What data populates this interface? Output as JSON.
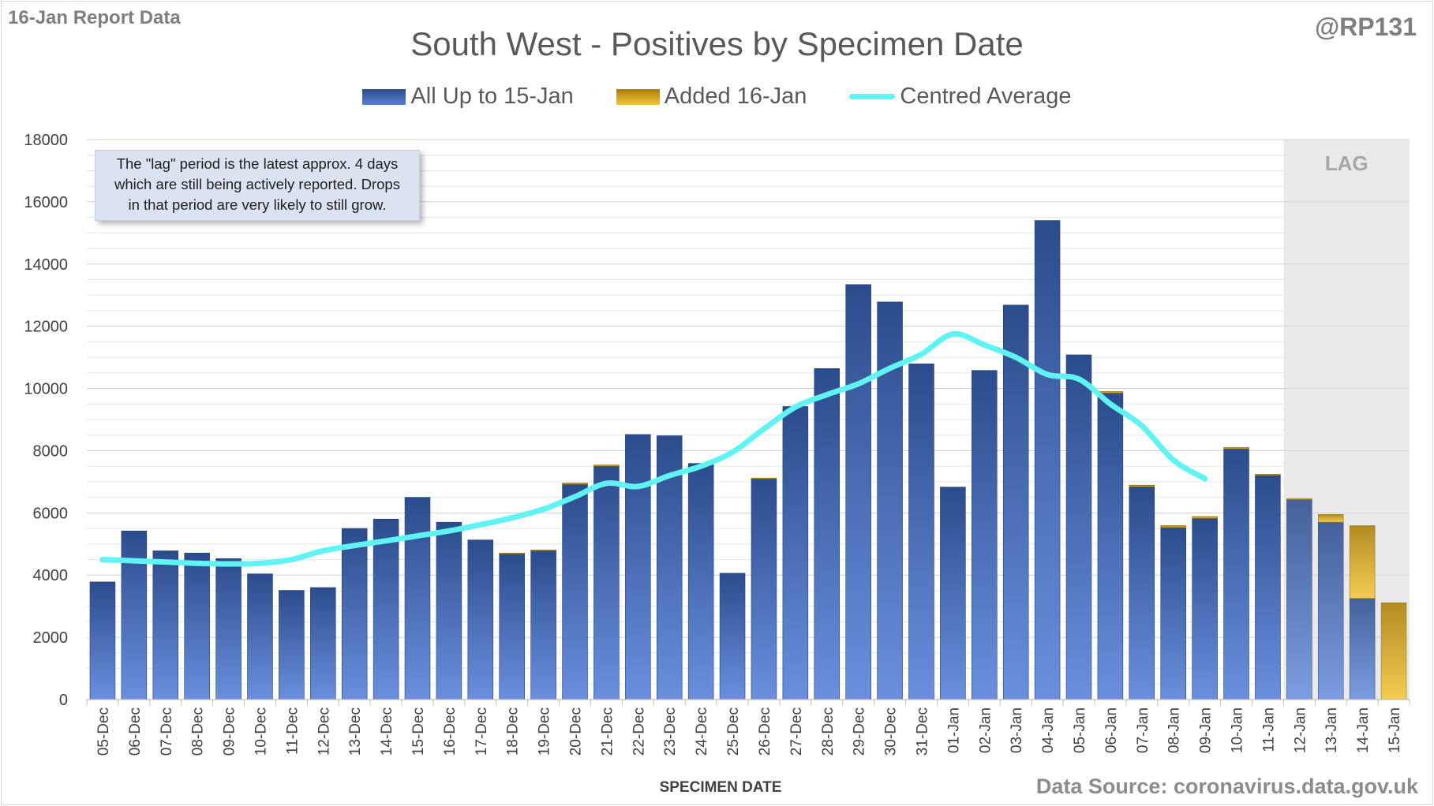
{
  "header": {
    "report_label": "16-Jan Report Data",
    "handle": "@RP131"
  },
  "annotation": {
    "lines": [
      "The \"lag\" period is the latest approx. 4 days",
      "which are still being actively reported.  Drops",
      "in that period are very likely to still grow."
    ]
  },
  "footer": {
    "source": "Data Source: coronavirus.data.gov.uk"
  },
  "colors": {
    "bar_top": "#2b4c8c",
    "bar_bottom": "#6b8fde",
    "added_top": "#a97c06",
    "added_bottom": "#f3c63a",
    "average_line": "#5ff3f3",
    "lag_shade": "#e8e8e8"
  },
  "chart_data": {
    "type": "bar",
    "title": "South West - Positives by Specimen Date",
    "xlabel": "SPECIMEN DATE",
    "ylabel": "",
    "ylim": [
      0,
      18000
    ],
    "yticks": [
      0,
      2000,
      4000,
      6000,
      8000,
      10000,
      12000,
      14000,
      16000,
      18000
    ],
    "grid": true,
    "stacked": true,
    "legend_position": "top",
    "lag_label": "LAG",
    "lag_categories": [
      "12-Jan",
      "13-Jan",
      "14-Jan",
      "15-Jan"
    ],
    "categories": [
      "05-Dec",
      "06-Dec",
      "07-Dec",
      "08-Dec",
      "09-Dec",
      "10-Dec",
      "11-Dec",
      "12-Dec",
      "13-Dec",
      "14-Dec",
      "15-Dec",
      "16-Dec",
      "17-Dec",
      "18-Dec",
      "19-Dec",
      "20-Dec",
      "21-Dec",
      "22-Dec",
      "23-Dec",
      "24-Dec",
      "25-Dec",
      "26-Dec",
      "27-Dec",
      "28-Dec",
      "29-Dec",
      "30-Dec",
      "31-Dec",
      "01-Jan",
      "02-Jan",
      "03-Jan",
      "04-Jan",
      "05-Jan",
      "06-Jan",
      "07-Jan",
      "08-Jan",
      "09-Jan",
      "10-Jan",
      "11-Jan",
      "12-Jan",
      "13-Jan",
      "14-Jan",
      "15-Jan"
    ],
    "series": [
      {
        "name": "All Up to 15-Jan",
        "type": "bar",
        "values": [
          3780,
          5420,
          4780,
          4710,
          4530,
          4040,
          3510,
          3600,
          5500,
          5800,
          6500,
          5700,
          5130,
          4680,
          4780,
          6920,
          7500,
          8520,
          8480,
          7590,
          4060,
          7090,
          9420,
          10640,
          13340,
          12780,
          10790,
          6830,
          10580,
          12680,
          15400,
          11080,
          9850,
          6840,
          5530,
          5820,
          8060,
          7210,
          6430,
          5700,
          3250,
          0
        ]
      },
      {
        "name": "Added 16-Jan",
        "type": "bar",
        "values": [
          0,
          0,
          0,
          0,
          0,
          0,
          0,
          0,
          0,
          0,
          0,
          0,
          0,
          30,
          30,
          40,
          40,
          0,
          0,
          0,
          0,
          30,
          0,
          0,
          0,
          0,
          0,
          0,
          0,
          0,
          0,
          0,
          50,
          50,
          60,
          60,
          40,
          30,
          30,
          250,
          2340,
          3110
        ]
      },
      {
        "name": "Centred Average",
        "type": "line",
        "values": [
          4500,
          4460,
          4420,
          4380,
          4360,
          4380,
          4500,
          4780,
          4950,
          5100,
          5260,
          5420,
          5620,
          5840,
          6120,
          6520,
          6950,
          6850,
          7200,
          7500,
          7950,
          8700,
          9400,
          9800,
          10150,
          10650,
          11100,
          11750,
          11400,
          11000,
          10450,
          10300,
          9500,
          8800,
          7700,
          7100,
          null,
          null,
          null,
          null,
          null,
          null
        ]
      }
    ]
  }
}
